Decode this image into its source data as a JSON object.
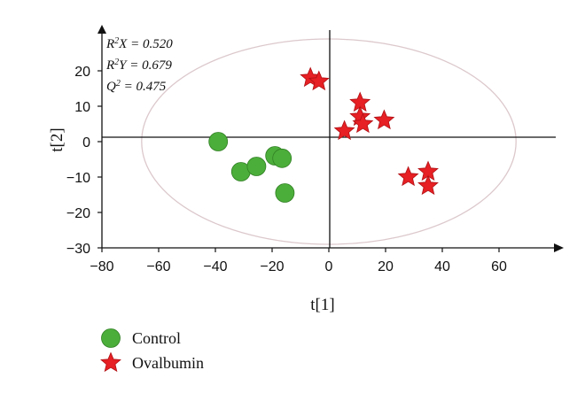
{
  "chart_data": {
    "type": "scatter",
    "xlabel": "t[1]",
    "ylabel": "t[2]",
    "xlim": [
      -80,
      80
    ],
    "ylim": [
      -30,
      30
    ],
    "xticks": [
      -80,
      -60,
      -40,
      -20,
      0,
      20,
      40,
      60
    ],
    "yticks": [
      -30,
      -20,
      -10,
      0,
      10,
      20
    ],
    "grid": false,
    "legend_position": "bottom-left",
    "ellipse": {
      "cx": 0,
      "cy": 0,
      "rx": 66,
      "ry": 29
    },
    "annotations": [
      {
        "symbol": "R",
        "sup": "2",
        "var": "X",
        "value": "= 0.520"
      },
      {
        "symbol": "R",
        "sup": "2",
        "var": "Y",
        "value": "= 0.679"
      },
      {
        "symbol": "Q",
        "sup": "2",
        "var": "",
        "value": "= 0.475"
      }
    ],
    "series": [
      {
        "name": "Control",
        "marker": "circle",
        "color": "#4cae3a",
        "points": [
          {
            "x": -39,
            "y": 0
          },
          {
            "x": -31,
            "y": -8.5
          },
          {
            "x": -25.5,
            "y": -7
          },
          {
            "x": -19,
            "y": -4
          },
          {
            "x": -16.5,
            "y": -4.7
          },
          {
            "x": -15.5,
            "y": -14.5
          }
        ]
      },
      {
        "name": "Ovalbumin",
        "marker": "star",
        "color": "#e62024",
        "points": [
          {
            "x": -6.5,
            "y": 18
          },
          {
            "x": -3.5,
            "y": 17
          },
          {
            "x": 11,
            "y": 11
          },
          {
            "x": 11,
            "y": 7
          },
          {
            "x": 12,
            "y": 5
          },
          {
            "x": 19.5,
            "y": 6
          },
          {
            "x": 5.5,
            "y": 3
          },
          {
            "x": 28,
            "y": -10
          },
          {
            "x": 35,
            "y": -8.5
          },
          {
            "x": 35,
            "y": -12.5
          }
        ]
      }
    ]
  }
}
